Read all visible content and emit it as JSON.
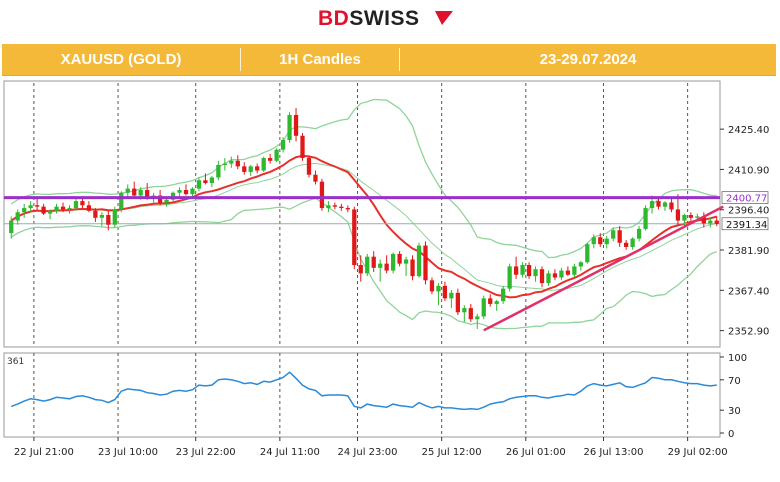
{
  "brand": {
    "bd": "BD",
    "swiss": "SWISS"
  },
  "header": {
    "symbol": "XAUUSD (GOLD)",
    "timeframe": "1H Candles",
    "dates": "23-29.07.2024"
  },
  "colors": {
    "header_bg": "#f5b93a",
    "bull": "#2eb82e",
    "bear": "#e01818",
    "ma": "#e8302a",
    "bands": "#8fd49a",
    "resistance": "#9b30c8",
    "trendline": "#e0306a",
    "indicator": "#2a8ad8"
  },
  "chart_data": {
    "type": "candlestick",
    "price_labels": [
      "2425.40",
      "2410.90",
      "2400.77",
      "2396.40",
      "2391.34",
      "2381.90",
      "2367.40",
      "2352.90"
    ],
    "price_ticks": [
      2425.4,
      2410.9,
      2396.4,
      2381.9,
      2367.4,
      2352.9
    ],
    "ylim": [
      2347.0,
      2442.0
    ],
    "resistance_level": 2400.77,
    "current_price": 2391.34,
    "x_labels": [
      "22 Jul 21:00",
      "23 Jul 10:00",
      "23 Jul 22:00",
      "24 Jul 11:00",
      "24 Jul 23:00",
      "25 Jul 12:00",
      "26 Jul 01:00",
      "26 Jul 13:00",
      "29 Jul 02:00"
    ],
    "separator_bars": [
      4,
      17,
      29,
      42,
      54,
      67,
      80,
      92,
      105
    ],
    "ohlc": [
      [
        2388.0,
        2394.0,
        2386.0,
        2392.5
      ],
      [
        2392.5,
        2396.5,
        2391.0,
        2395.5
      ],
      [
        2395.5,
        2398.5,
        2393.5,
        2397.0
      ],
      [
        2397.0,
        2399.5,
        2395.5,
        2398.0
      ],
      [
        2398.0,
        2400.5,
        2396.0,
        2397.5
      ],
      [
        2397.5,
        2398.5,
        2394.5,
        2395.0
      ],
      [
        2395.0,
        2396.5,
        2393.0,
        2396.0
      ],
      [
        2396.0,
        2398.5,
        2395.0,
        2397.5
      ],
      [
        2397.5,
        2399.0,
        2395.5,
        2396.5
      ],
      [
        2396.5,
        2398.0,
        2395.0,
        2397.0
      ],
      [
        2397.0,
        2400.5,
        2396.0,
        2399.5
      ],
      [
        2399.5,
        2401.0,
        2397.0,
        2398.0
      ],
      [
        2398.0,
        2399.5,
        2395.5,
        2396.0
      ],
      [
        2396.0,
        2397.0,
        2392.0,
        2393.5
      ],
      [
        2393.5,
        2395.5,
        2390.5,
        2394.5
      ],
      [
        2394.5,
        2396.0,
        2389.0,
        2391.0
      ],
      [
        2391.0,
        2397.5,
        2390.0,
        2396.5
      ],
      [
        2396.5,
        2403.0,
        2395.5,
        2402.5
      ],
      [
        2402.5,
        2405.5,
        2400.5,
        2404.0
      ],
      [
        2404.0,
        2406.5,
        2400.5,
        2401.5
      ],
      [
        2401.5,
        2404.5,
        2400.0,
        2403.5
      ],
      [
        2403.5,
        2406.0,
        2400.0,
        2400.5
      ],
      [
        2400.5,
        2402.5,
        2399.0,
        2401.5
      ],
      [
        2401.5,
        2403.5,
        2398.0,
        2399.0
      ],
      [
        2399.0,
        2401.0,
        2397.5,
        2400.0
      ],
      [
        2400.0,
        2403.0,
        2399.5,
        2402.5
      ],
      [
        2402.5,
        2404.5,
        2400.5,
        2403.5
      ],
      [
        2403.5,
        2405.5,
        2401.5,
        2402.0
      ],
      [
        2402.0,
        2404.5,
        2401.0,
        2404.0
      ],
      [
        2404.0,
        2408.0,
        2403.0,
        2407.0
      ],
      [
        2407.0,
        2409.5,
        2405.5,
        2406.0
      ],
      [
        2406.0,
        2408.5,
        2404.5,
        2408.0
      ],
      [
        2408.0,
        2414.0,
        2407.0,
        2412.5
      ],
      [
        2412.5,
        2415.0,
        2410.5,
        2413.0
      ],
      [
        2413.0,
        2415.5,
        2411.5,
        2414.0
      ],
      [
        2414.0,
        2416.0,
        2411.0,
        2412.0
      ],
      [
        2412.0,
        2413.5,
        2409.0,
        2410.0
      ],
      [
        2410.0,
        2412.5,
        2408.5,
        2412.0
      ],
      [
        2412.0,
        2413.0,
        2409.5,
        2410.5
      ],
      [
        2410.5,
        2415.5,
        2410.0,
        2415.0
      ],
      [
        2415.0,
        2416.5,
        2413.0,
        2414.0
      ],
      [
        2414.0,
        2418.5,
        2413.5,
        2418.0
      ],
      [
        2418.0,
        2422.5,
        2417.0,
        2421.5
      ],
      [
        2421.5,
        2431.5,
        2420.5,
        2430.5
      ],
      [
        2430.5,
        2433.0,
        2421.0,
        2423.0
      ],
      [
        2423.0,
        2424.0,
        2414.0,
        2415.0
      ],
      [
        2415.0,
        2416.0,
        2408.0,
        2409.0
      ],
      [
        2409.0,
        2410.5,
        2405.5,
        2406.5
      ],
      [
        2406.5,
        2407.5,
        2396.0,
        2397.0
      ],
      [
        2397.0,
        2399.5,
        2395.5,
        2398.0
      ],
      [
        2398.0,
        2399.0,
        2396.5,
        2397.5
      ],
      [
        2397.5,
        2398.5,
        2396.0,
        2397.0
      ],
      [
        2397.0,
        2398.0,
        2395.5,
        2396.5
      ],
      [
        2396.5,
        2397.5,
        2375.0,
        2376.5
      ],
      [
        2376.5,
        2380.0,
        2370.5,
        2373.5
      ],
      [
        2373.5,
        2380.5,
        2372.5,
        2379.5
      ],
      [
        2379.5,
        2381.5,
        2374.0,
        2375.5
      ],
      [
        2375.5,
        2378.5,
        2370.5,
        2377.0
      ],
      [
        2377.0,
        2380.0,
        2373.5,
        2374.5
      ],
      [
        2374.5,
        2381.0,
        2373.5,
        2380.5
      ],
      [
        2380.5,
        2381.5,
        2376.0,
        2377.0
      ],
      [
        2377.0,
        2379.5,
        2372.5,
        2378.5
      ],
      [
        2378.5,
        2380.0,
        2371.0,
        2372.5
      ],
      [
        2372.5,
        2384.5,
        2372.0,
        2383.5
      ],
      [
        2383.5,
        2385.0,
        2369.5,
        2371.0
      ],
      [
        2371.0,
        2372.0,
        2366.0,
        2367.0
      ],
      [
        2367.0,
        2370.0,
        2362.0,
        2369.0
      ],
      [
        2369.0,
        2370.5,
        2363.5,
        2364.5
      ],
      [
        2364.5,
        2367.5,
        2361.0,
        2366.5
      ],
      [
        2366.5,
        2368.0,
        2358.5,
        2359.5
      ],
      [
        2359.5,
        2362.0,
        2356.0,
        2361.0
      ],
      [
        2361.0,
        2362.5,
        2356.0,
        2357.0
      ],
      [
        2357.0,
        2359.0,
        2353.5,
        2358.0
      ],
      [
        2358.0,
        2365.5,
        2357.0,
        2364.5
      ],
      [
        2364.5,
        2366.0,
        2361.5,
        2362.5
      ],
      [
        2362.5,
        2364.0,
        2360.0,
        2363.5
      ],
      [
        2363.5,
        2369.0,
        2362.5,
        2368.0
      ],
      [
        2368.0,
        2377.0,
        2367.0,
        2376.0
      ],
      [
        2376.0,
        2379.5,
        2371.5,
        2373.0
      ],
      [
        2373.0,
        2377.5,
        2372.0,
        2376.5
      ],
      [
        2376.5,
        2377.5,
        2371.5,
        2372.5
      ],
      [
        2372.5,
        2376.0,
        2370.5,
        2375.0
      ],
      [
        2375.0,
        2376.0,
        2368.5,
        2370.0
      ],
      [
        2370.0,
        2374.5,
        2369.0,
        2373.5
      ],
      [
        2373.5,
        2375.0,
        2371.0,
        2372.0
      ],
      [
        2372.0,
        2375.5,
        2371.0,
        2374.5
      ],
      [
        2374.5,
        2376.0,
        2372.5,
        2373.0
      ],
      [
        2373.0,
        2377.0,
        2372.0,
        2376.0
      ],
      [
        2376.0,
        2378.0,
        2374.5,
        2377.5
      ],
      [
        2377.5,
        2384.5,
        2377.0,
        2384.0
      ],
      [
        2384.0,
        2387.5,
        2382.5,
        2386.5
      ],
      [
        2386.5,
        2388.0,
        2383.0,
        2384.0
      ],
      [
        2384.0,
        2387.0,
        2382.5,
        2386.0
      ],
      [
        2386.0,
        2390.0,
        2385.0,
        2389.0
      ],
      [
        2389.0,
        2390.5,
        2383.0,
        2384.5
      ],
      [
        2384.5,
        2385.5,
        2382.0,
        2383.0
      ],
      [
        2383.0,
        2386.5,
        2382.0,
        2386.0
      ],
      [
        2386.0,
        2390.5,
        2385.0,
        2389.5
      ],
      [
        2389.5,
        2398.0,
        2389.0,
        2397.0
      ],
      [
        2397.0,
        2401.5,
        2395.0,
        2399.5
      ],
      [
        2399.5,
        2401.0,
        2396.5,
        2397.5
      ],
      [
        2397.5,
        2399.5,
        2396.0,
        2399.0
      ],
      [
        2399.0,
        2400.5,
        2395.5,
        2396.5
      ],
      [
        2396.5,
        2402.0,
        2391.0,
        2392.5
      ],
      [
        2392.5,
        2395.0,
        2390.5,
        2394.5
      ],
      [
        2394.5,
        2395.5,
        2392.5,
        2393.5
      ],
      [
        2393.5,
        2395.0,
        2392.0,
        2394.0
      ],
      [
        2394.0,
        2395.5,
        2390.0,
        2391.5
      ],
      [
        2391.5,
        2393.5,
        2390.0,
        2392.5
      ],
      [
        2392.5,
        2394.0,
        2390.5,
        2391.3
      ]
    ],
    "indicator": {
      "name_label": "361",
      "levels": [
        "100",
        "70",
        "30",
        "0"
      ],
      "level_values": [
        100,
        70,
        30,
        0
      ],
      "values": [
        35,
        38,
        42,
        45,
        44,
        42,
        44,
        47,
        46,
        45,
        48,
        49,
        47,
        44,
        43,
        40,
        44,
        55,
        58,
        57,
        56,
        53,
        52,
        50,
        51,
        55,
        56,
        55,
        57,
        63,
        62,
        63,
        70,
        71,
        70,
        68,
        65,
        66,
        64,
        68,
        67,
        70,
        73,
        80,
        72,
        63,
        58,
        56,
        49,
        50,
        50,
        50,
        49,
        35,
        33,
        38,
        36,
        35,
        34,
        38,
        36,
        35,
        34,
        40,
        36,
        33,
        35,
        33,
        33,
        32,
        31,
        32,
        31,
        34,
        38,
        40,
        41,
        45,
        47,
        48,
        49,
        49,
        47,
        46,
        48,
        49,
        51,
        50,
        55,
        62,
        65,
        63,
        62,
        64,
        66,
        61,
        60,
        63,
        66,
        73,
        72,
        70,
        70,
        68,
        66,
        65,
        65,
        63,
        62,
        63
      ]
    }
  }
}
